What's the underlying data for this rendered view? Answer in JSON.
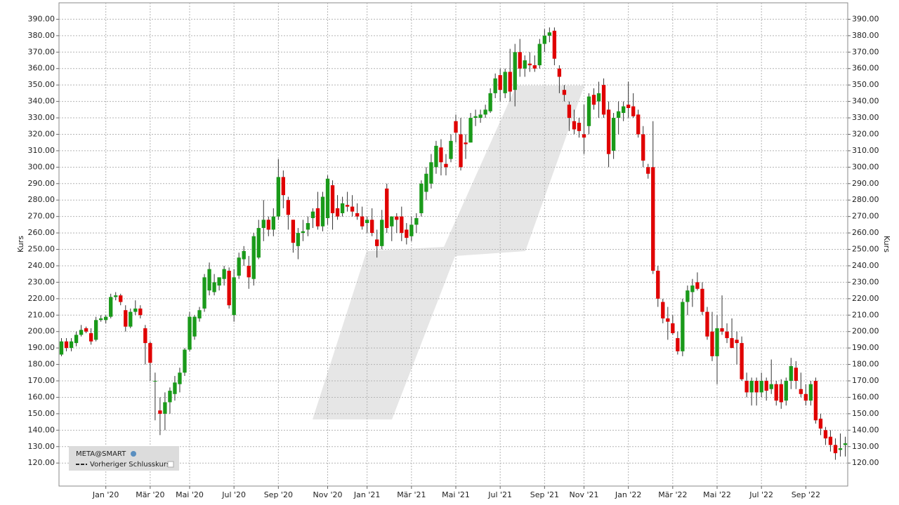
{
  "chart_data": {
    "type": "candlestick",
    "y_label": "Kurs",
    "legend": [
      "META@SMART",
      "Vorheriger Schlusskurs"
    ],
    "up_color": "#1a9a1a",
    "down_color": "#e00000",
    "grid": true,
    "categories": [
      null,
      null,
      null,
      null,
      null,
      null,
      null,
      null,
      null,
      "Jan '20",
      null,
      null,
      null,
      null,
      null,
      null,
      null,
      null,
      "Mär '20",
      null,
      null,
      null,
      null,
      null,
      null,
      null,
      "Mai '20",
      null,
      null,
      null,
      null,
      null,
      null,
      null,
      null,
      "Jul '20",
      null,
      null,
      null,
      null,
      null,
      null,
      null,
      null,
      "Sep '20",
      null,
      null,
      null,
      null,
      null,
      null,
      null,
      null,
      null,
      "Nov '20",
      null,
      null,
      null,
      null,
      null,
      null,
      null,
      "Jan '21",
      null,
      null,
      null,
      null,
      null,
      null,
      null,
      null,
      "Mär '21",
      null,
      null,
      null,
      null,
      null,
      null,
      null,
      null,
      "Mai '21",
      null,
      null,
      null,
      null,
      null,
      null,
      null,
      null,
      "Jul '21",
      null,
      null,
      null,
      null,
      null,
      null,
      null,
      null,
      "Sep '21",
      null,
      null,
      null,
      null,
      null,
      null,
      null,
      "Nov '21",
      null,
      null,
      null,
      null,
      null,
      null,
      null,
      null,
      "Jan '22",
      null,
      null,
      null,
      null,
      null,
      null,
      null,
      null,
      "Mär '22",
      null,
      null,
      null,
      null,
      null,
      null,
      null,
      null,
      "Mai '22",
      null,
      null,
      null,
      null,
      null,
      null,
      null,
      null,
      "Jul '22",
      null,
      null,
      null,
      null,
      null,
      null,
      null,
      null,
      "Sep '22",
      null,
      null,
      null,
      null,
      null,
      null,
      null,
      null
    ],
    "open": [
      186,
      194,
      190,
      193,
      198,
      202,
      199,
      195,
      207,
      207,
      209,
      221,
      222,
      213,
      203,
      212,
      214,
      202,
      193,
      170,
      152,
      150,
      157,
      162,
      168,
      175,
      189,
      197,
      208,
      214,
      225,
      224,
      228,
      232,
      237,
      210,
      234,
      244,
      240,
      232,
      245,
      263,
      268,
      262,
      270,
      294,
      280,
      268,
      252,
      260,
      262,
      269,
      275,
      264,
      269,
      289,
      275,
      272,
      277,
      276,
      272,
      270,
      266,
      268,
      256,
      252,
      287,
      264,
      270,
      270,
      262,
      258,
      265,
      272,
      285,
      290,
      300,
      312,
      302,
      305,
      328,
      320,
      315,
      315,
      330,
      330,
      332,
      334,
      345,
      356,
      345,
      358,
      347,
      370,
      360,
      363,
      362,
      362,
      375,
      380,
      383,
      360,
      347,
      338,
      328,
      327,
      320,
      325,
      344,
      340,
      350,
      335,
      310,
      330,
      333,
      338,
      337,
      332,
      320,
      300,
      300,
      237,
      218,
      208,
      205,
      196,
      188,
      218,
      224,
      230,
      226,
      212,
      200,
      185,
      202,
      200,
      196,
      195,
      193,
      170,
      163,
      170,
      163,
      170,
      165,
      168,
      168,
      158,
      170,
      178,
      165,
      162,
      158,
      170,
      147,
      140,
      136,
      131,
      128,
      131
    ],
    "high": [
      196,
      196,
      196,
      200,
      204,
      203,
      202,
      209,
      210,
      210,
      223,
      224,
      223,
      216,
      214,
      219,
      216,
      204,
      194,
      175,
      160,
      163,
      166,
      173,
      178,
      190,
      212,
      210,
      215,
      235,
      242,
      235,
      233,
      240,
      239,
      238,
      248,
      252,
      246,
      260,
      268,
      280,
      270,
      275,
      305,
      298,
      282,
      268,
      263,
      268,
      270,
      275,
      285,
      285,
      295,
      292,
      283,
      282,
      285,
      283,
      278,
      276,
      270,
      275,
      262,
      274,
      290,
      270,
      272,
      276,
      266,
      270,
      272,
      292,
      300,
      308,
      316,
      317,
      308,
      320,
      332,
      330,
      320,
      333,
      335,
      335,
      338,
      348,
      357,
      360,
      360,
      372,
      375,
      378,
      368,
      370,
      368,
      378,
      384,
      385,
      385,
      362,
      350,
      340,
      335,
      330,
      338,
      345,
      348,
      352,
      354,
      340,
      333,
      340,
      340,
      352,
      345,
      335,
      325,
      302,
      328,
      240,
      220,
      215,
      210,
      200,
      220,
      228,
      232,
      236,
      230,
      215,
      212,
      210,
      222,
      205,
      208,
      200,
      197,
      175,
      172,
      172,
      175,
      172,
      183,
      170,
      171,
      172,
      184,
      182,
      175,
      168,
      170,
      172,
      150,
      142,
      140,
      135,
      138,
      136
    ],
    "low": [
      185,
      188,
      188,
      191,
      197,
      199,
      192,
      194,
      206,
      205,
      208,
      219,
      216,
      200,
      202,
      210,
      208,
      180,
      170,
      146,
      137,
      140,
      150,
      158,
      163,
      173,
      188,
      195,
      206,
      212,
      222,
      222,
      225,
      228,
      214,
      206,
      232,
      240,
      226,
      228,
      244,
      255,
      258,
      258,
      268,
      275,
      262,
      248,
      244,
      255,
      258,
      263,
      262,
      261,
      265,
      262,
      268,
      270,
      273,
      270,
      268,
      262,
      260,
      258,
      245,
      250,
      260,
      255,
      260,
      255,
      253,
      255,
      260,
      270,
      280,
      287,
      296,
      295,
      295,
      303,
      315,
      298,
      305,
      315,
      325,
      327,
      330,
      333,
      342,
      340,
      342,
      340,
      337,
      355,
      355,
      358,
      358,
      360,
      370,
      376,
      362,
      345,
      340,
      322,
      320,
      318,
      308,
      320,
      335,
      330,
      330,
      300,
      305,
      320,
      328,
      330,
      330,
      318,
      300,
      293,
      235,
      215,
      205,
      195,
      198,
      186,
      185,
      210,
      215,
      225,
      210,
      195,
      182,
      168,
      198,
      193,
      190,
      180,
      170,
      160,
      155,
      155,
      160,
      158,
      162,
      155,
      153,
      155,
      165,
      165,
      160,
      155,
      155,
      144,
      137,
      131,
      127,
      122,
      124,
      124
    ],
    "close": [
      194,
      190,
      194,
      198,
      201,
      200,
      194,
      207,
      208,
      209,
      221,
      222,
      218,
      203,
      212,
      214,
      210,
      193,
      181,
      170,
      150,
      157,
      164,
      169,
      175,
      189,
      209,
      209,
      213,
      233,
      238,
      230,
      233,
      238,
      216,
      233,
      245,
      249,
      233,
      258,
      263,
      268,
      262,
      270,
      294,
      283,
      271,
      254,
      260,
      261,
      266,
      273,
      264,
      282,
      293,
      272,
      270,
      278,
      276,
      273,
      270,
      264,
      268,
      260,
      252,
      268,
      263,
      270,
      268,
      260,
      257,
      265,
      269,
      290,
      296,
      303,
      313,
      303,
      300,
      316,
      321,
      300,
      314,
      330,
      331,
      332,
      335,
      345,
      354,
      347,
      358,
      346,
      370,
      360,
      365,
      362,
      360,
      375,
      380,
      382,
      366,
      355,
      344,
      330,
      323,
      322,
      318,
      343,
      338,
      345,
      332,
      308,
      330,
      334,
      337,
      336,
      331,
      320,
      304,
      296,
      237,
      220,
      208,
      206,
      199,
      188,
      218,
      225,
      228,
      226,
      212,
      197,
      185,
      202,
      200,
      196,
      190,
      193,
      171,
      163,
      170,
      163,
      170,
      164,
      168,
      158,
      157,
      170,
      179,
      170,
      162,
      158,
      168,
      146,
      141,
      135,
      131,
      126,
      129,
      132
    ],
    "ylim": [
      106,
      400
    ],
    "yticks": [
      {
        "value": 120,
        "label": "120.00"
      },
      {
        "value": 130,
        "label": "130.00"
      },
      {
        "value": 140,
        "label": "140.00"
      },
      {
        "value": 150,
        "label": "150.00"
      },
      {
        "value": 160,
        "label": "160.00"
      },
      {
        "value": 170,
        "label": "170.00"
      },
      {
        "value": 180,
        "label": "180.00"
      },
      {
        "value": 190,
        "label": "190.00"
      },
      {
        "value": 200,
        "label": "200.00"
      },
      {
        "value": 210,
        "label": "210.00"
      },
      {
        "value": 220,
        "label": "220.00"
      },
      {
        "value": 230,
        "label": "230.00"
      },
      {
        "value": 240,
        "label": "240.00"
      },
      {
        "value": 250,
        "label": "250.00"
      },
      {
        "value": 260,
        "label": "260.00"
      },
      {
        "value": 270,
        "label": "270.00"
      },
      {
        "value": 280,
        "label": "280.00"
      },
      {
        "value": 290,
        "label": "290.00"
      },
      {
        "value": 300,
        "label": "300.00"
      },
      {
        "value": 310,
        "label": "310.00"
      },
      {
        "value": 320,
        "label": "320.00"
      },
      {
        "value": 330,
        "label": "330.00"
      },
      {
        "value": 340,
        "label": "340.00"
      },
      {
        "value": 350,
        "label": "350.00"
      },
      {
        "value": 360,
        "label": "360.00"
      },
      {
        "value": 370,
        "label": "370.00"
      },
      {
        "value": 380,
        "label": "380.00"
      },
      {
        "value": 390,
        "label": "390.00"
      }
    ]
  }
}
